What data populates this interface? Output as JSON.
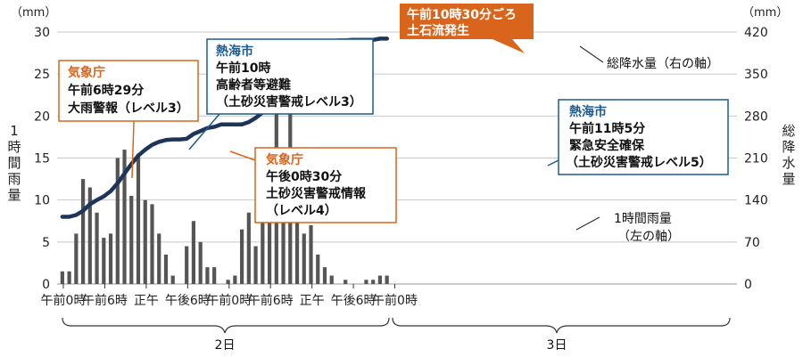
{
  "chart_data": {
    "type": "bar+line",
    "left_unit": "（mm）",
    "right_unit": "（mm）",
    "ylabel_left": "1時間雨量",
    "ylabel_right": "総降水量",
    "left_ticks": [
      "30",
      "25",
      "20",
      "15",
      "10",
      "5",
      "0"
    ],
    "right_ticks": [
      "420",
      "350",
      "280",
      "210",
      "140",
      "70",
      "0"
    ],
    "ylim_left": [
      0,
      30
    ],
    "ylim_right": [
      0,
      420
    ],
    "x_tick_labels": [
      "午前0時",
      "午前6時",
      "正午",
      "午後6時",
      "午前0時",
      "午前6時",
      "正午",
      "午後6時",
      "午前0時"
    ],
    "days": [
      "2日",
      "3日"
    ],
    "hourly_rain": [
      1.5,
      1.5,
      6,
      12.5,
      11.5,
      8.5,
      5.5,
      6,
      15,
      16,
      10.5,
      15.5,
      10,
      9.5,
      6,
      3.5,
      1,
      0,
      4.5,
      7.5,
      5,
      2,
      2,
      0,
      0.5,
      1,
      6.5,
      8.5,
      4.5,
      10,
      10,
      28,
      14.5,
      27,
      14,
      6,
      7,
      3.5,
      2,
      1,
      0,
      0.5,
      0,
      0,
      0.5,
      0.5,
      1,
      1
    ],
    "cumulative": [
      112,
      112,
      115,
      122,
      133,
      140,
      146,
      155,
      168,
      184,
      200,
      214,
      224,
      232,
      237,
      240,
      241,
      241,
      242,
      250,
      255,
      260,
      262,
      266,
      266,
      266,
      266,
      270,
      277,
      286,
      297,
      310,
      328,
      363,
      378,
      387,
      394,
      398,
      403,
      405,
      406,
      406,
      407,
      407,
      407,
      407,
      409,
      409
    ],
    "bar_series_label": "1時間雨量\n（左の軸）",
    "line_series_label": "総降水量（右の軸）"
  },
  "callouts": [
    {
      "id": "jma-heavy-rain",
      "head": "気象庁",
      "lines": [
        "午前6時29分",
        "大雨警報（レベル3）"
      ]
    },
    {
      "id": "atami-elderly-evac",
      "head": "熱海市",
      "lines": [
        "午前10時",
        "高齢者等避難",
        "（土砂災害警戒レベル3）"
      ]
    },
    {
      "id": "landslide",
      "lines": [
        "午前10時30分ごろ",
        "土石流発生"
      ]
    },
    {
      "id": "jma-landslide-info",
      "head": "気象庁",
      "lines": [
        "午後0時30分",
        "土砂災害警戒情報",
        "（レベル4）"
      ]
    },
    {
      "id": "atami-emergency",
      "head": "熱海市",
      "lines": [
        "午前11時5分",
        "緊急安全確保",
        "（土砂災害警戒レベル5）"
      ]
    }
  ]
}
